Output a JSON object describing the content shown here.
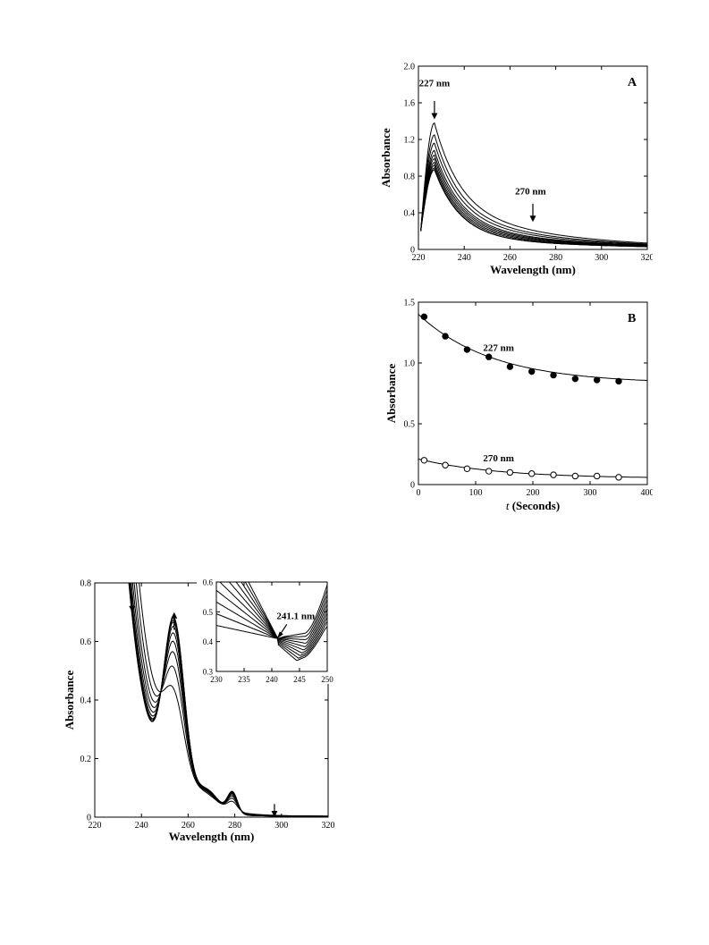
{
  "chart_data": [
    {
      "id": "A",
      "type": "line",
      "panel_label": "A",
      "xlabel": "Wavelength (nm)",
      "ylabel": "Absorbance",
      "xlim": [
        220,
        320
      ],
      "ylim": [
        0,
        2.0
      ],
      "xticks": [
        220,
        240,
        260,
        280,
        300,
        320
      ],
      "xtick_labels": [
        "220",
        "240",
        "260",
        "280",
        "300",
        "320"
      ],
      "yticks": [
        0,
        0.4,
        0.8,
        1.2,
        1.6,
        2.0
      ],
      "ytick_labels": [
        "0",
        "0.4",
        "0.8",
        "1.2",
        "1.6",
        "2.0"
      ],
      "grid": false,
      "annotations": [
        {
          "text": "227 nm",
          "x": 227,
          "arrow_from": 1.62,
          "arrow_to": 1.42,
          "text_y": 1.78,
          "text_x": 227
        },
        {
          "text": "270 nm",
          "x": 270,
          "arrow_from": 0.5,
          "arrow_to": 0.3,
          "text_y": 0.6,
          "text_x": 269
        }
      ],
      "series": [
        {
          "peak": 1.38,
          "tail270": 0.2
        },
        {
          "peak": 1.25,
          "tail270": 0.17
        },
        {
          "peak": 1.16,
          "tail270": 0.15
        },
        {
          "peak": 1.08,
          "tail270": 0.13
        },
        {
          "peak": 1.03,
          "tail270": 0.12
        },
        {
          "peak": 0.99,
          "tail270": 0.11
        },
        {
          "peak": 0.95,
          "tail270": 0.1
        },
        {
          "peak": 0.92,
          "tail270": 0.09
        },
        {
          "peak": 0.89,
          "tail270": 0.08
        },
        {
          "peak": 0.87,
          "tail270": 0.08
        }
      ]
    },
    {
      "id": "B",
      "type": "scatter",
      "panel_label": "B",
      "xlabel_italic": "t",
      "xlabel_rest": " (Seconds)",
      "ylabel": "Absorbance",
      "xlim": [
        0,
        400
      ],
      "ylim": [
        0,
        1.5
      ],
      "xticks": [
        0,
        100,
        200,
        300,
        400
      ],
      "xtick_labels": [
        "0",
        "100",
        "200",
        "300",
        "400"
      ],
      "yticks": [
        0,
        0.5,
        1.0,
        1.5
      ],
      "ytick_labels": [
        "0",
        "0.5",
        "1.0",
        "1.5"
      ],
      "grid": false,
      "series": [
        {
          "name": "227 nm",
          "marker": "filled-circle",
          "x": [
            10,
            47,
            85,
            123,
            160,
            198,
            236,
            274,
            312,
            350
          ],
          "y": [
            1.38,
            1.22,
            1.11,
            1.05,
            0.97,
            0.93,
            0.9,
            0.87,
            0.86,
            0.85
          ],
          "fit": {
            "a_inf": 0.83,
            "amp": 0.57,
            "tau": 130
          }
        },
        {
          "name": "270 nm",
          "marker": "open-circle",
          "x": [
            10,
            47,
            85,
            123,
            160,
            198,
            236,
            274,
            312,
            350
          ],
          "y": [
            0.2,
            0.16,
            0.13,
            0.11,
            0.1,
            0.09,
            0.08,
            0.07,
            0.07,
            0.06
          ],
          "fit": {
            "a_inf": 0.05,
            "amp": 0.16,
            "tau": 140
          }
        }
      ],
      "series_labels": [
        {
          "text": "227 nm",
          "x": 140,
          "y": 1.1
        },
        {
          "text": "270 nm",
          "x": 140,
          "y": 0.19
        }
      ]
    },
    {
      "id": "C",
      "type": "line",
      "xlabel": "Wavelength (nm)",
      "ylabel": "Absorbance",
      "xlim": [
        220,
        320
      ],
      "ylim": [
        0,
        0.8
      ],
      "xticks": [
        220,
        240,
        260,
        280,
        300,
        320
      ],
      "xtick_labels": [
        "220",
        "240",
        "260",
        "280",
        "300",
        "320"
      ],
      "yticks": [
        0,
        0.2,
        0.4,
        0.6,
        0.8
      ],
      "ytick_labels": [
        "0",
        "0.2",
        "0.4",
        "0.6",
        "0.8"
      ],
      "grid": false,
      "arrows": [
        {
          "direction": "down",
          "x": 236,
          "y_from": 0.76,
          "y_to": 0.7
        },
        {
          "direction": "up",
          "x": 254,
          "y_from": 0.64,
          "y_to": 0.7
        },
        {
          "direction": "down",
          "x": 297,
          "y_from": 0.045,
          "y_to": 0.0
        }
      ],
      "series": [
        {
          "p254": 0.25,
          "s": 0.0
        },
        {
          "p254": 0.35,
          "s": 0.12
        },
        {
          "p254": 0.42,
          "s": 0.22
        },
        {
          "p254": 0.47,
          "s": 0.32
        },
        {
          "p254": 0.51,
          "s": 0.42
        },
        {
          "p254": 0.54,
          "s": 0.54
        },
        {
          "p254": 0.56,
          "s": 0.66
        },
        {
          "p254": 0.57,
          "s": 0.8
        },
        {
          "p254": 0.58,
          "s": 0.94
        },
        {
          "p254": 0.585,
          "s": 1.08
        }
      ],
      "inset": {
        "xlim": [
          230,
          250
        ],
        "ylim": [
          0.3,
          0.6
        ],
        "xticks": [
          230,
          235,
          240,
          245,
          250
        ],
        "xtick_labels": [
          "230",
          "235",
          "240",
          "245",
          "250"
        ],
        "yticks": [
          0.3,
          0.4,
          0.5,
          0.6
        ],
        "ytick_labels": [
          "0.3",
          "0.4",
          "0.5",
          "0.6"
        ],
        "annotation": {
          "text": "241.1 nm",
          "x": 241.1,
          "y": 0.41
        }
      }
    }
  ]
}
